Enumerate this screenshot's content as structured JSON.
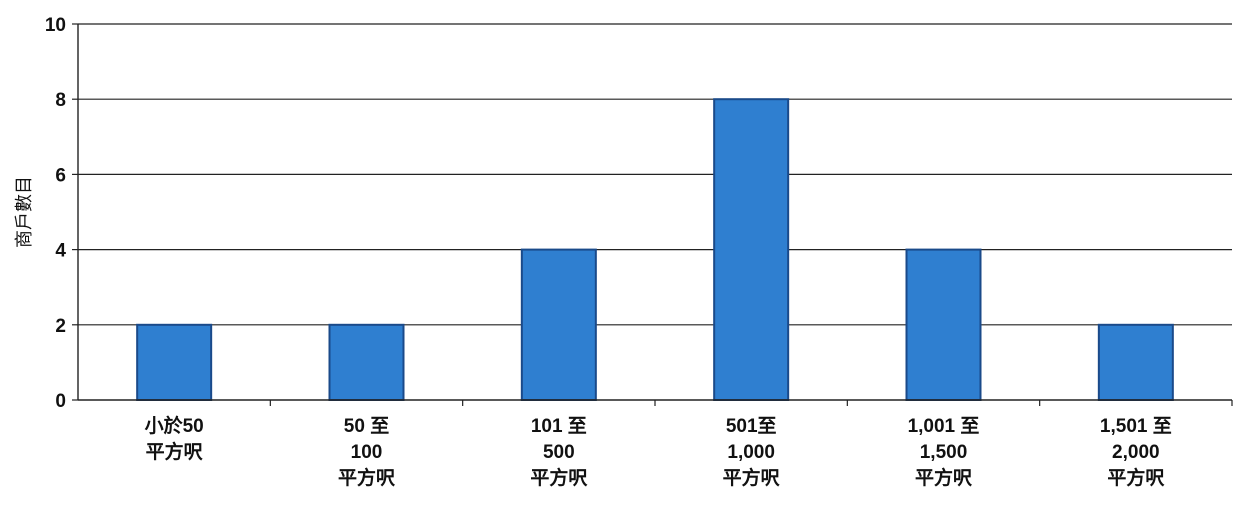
{
  "chart_data": {
    "type": "bar",
    "title": "",
    "xlabel": "",
    "ylabel": "商戶數目",
    "ylim": [
      0,
      10
    ],
    "yticks": [
      0,
      2,
      4,
      6,
      8,
      10
    ],
    "grid": true,
    "legend": "none",
    "categories": [
      [
        "小於50",
        "平方呎"
      ],
      [
        "50 至",
        "100",
        "平方呎"
      ],
      [
        "101 至",
        "500",
        "平方呎"
      ],
      [
        "501至",
        "1,000",
        "平方呎"
      ],
      [
        "1,001 至",
        "1,500",
        "平方呎"
      ],
      [
        "1,501 至",
        "2,000",
        "平方呎"
      ]
    ],
    "values": [
      2,
      2,
      4,
      8,
      4,
      2
    ],
    "colors": {
      "bar_fill": "#2f7fd0",
      "bar_stroke": "#1a4a8a",
      "grid": "#222222",
      "axis": "#222222"
    }
  }
}
